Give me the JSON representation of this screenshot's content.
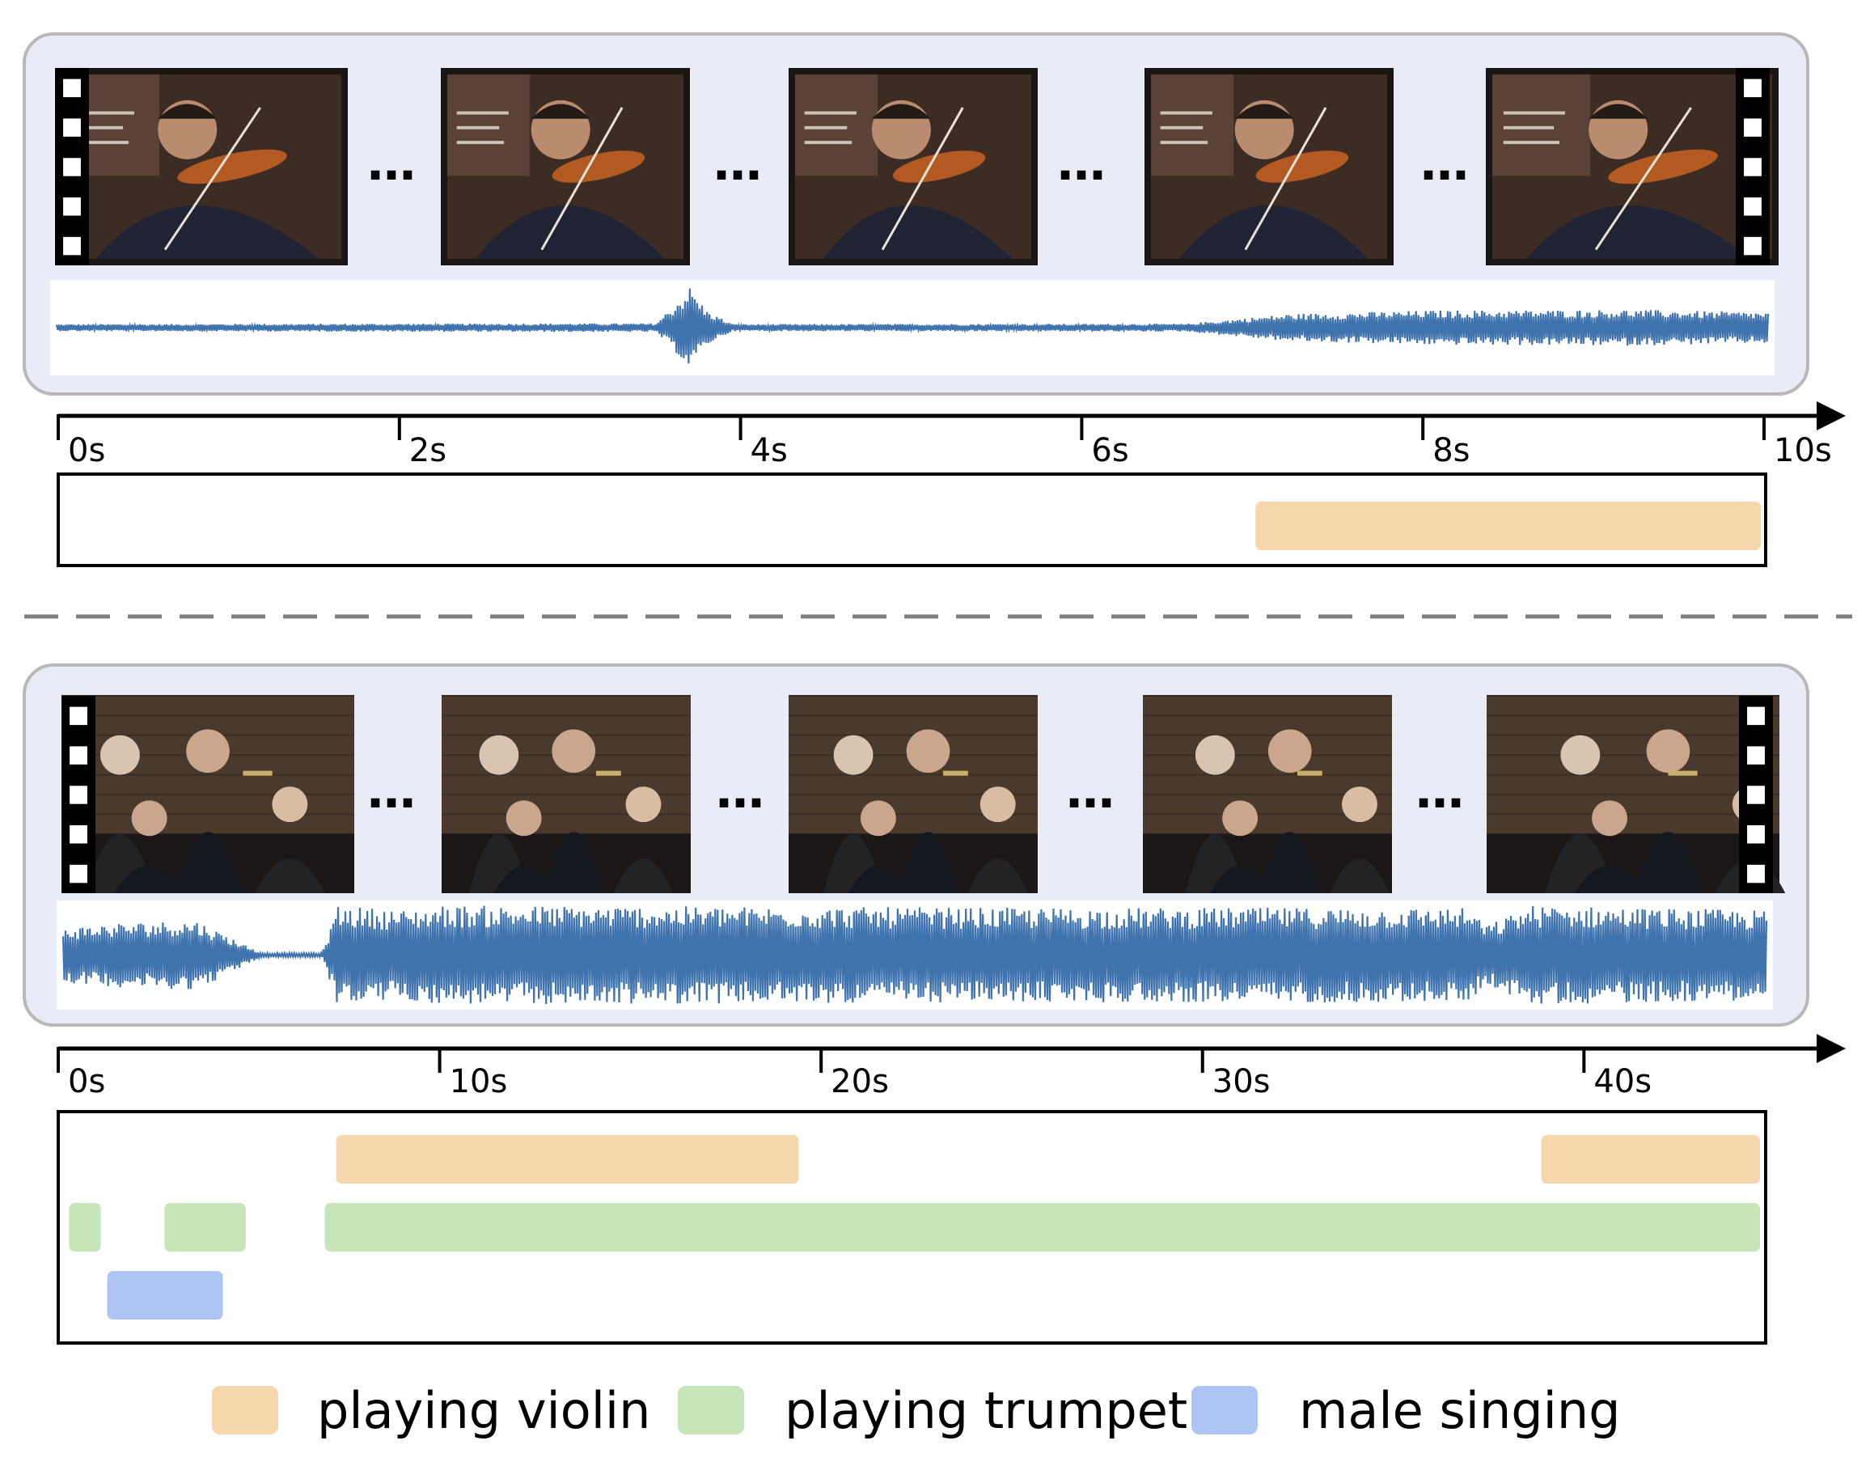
{
  "colors": {
    "panel_fill": "#e9ecf6",
    "panel_stroke": "#b8b8b8",
    "waveform": "#3f73ad",
    "violin": "#f5d6ad",
    "trumpet": "#c6e5b8",
    "singing": "#aec4f2",
    "axis": "#000000",
    "divider": "#808080"
  },
  "legend": [
    {
      "key": "violin",
      "label": "playing violin",
      "color": "#f5d6ad"
    },
    {
      "key": "trumpet",
      "label": "playing trumpet",
      "color": "#c6e5b8"
    },
    {
      "key": "singing",
      "label": "male singing",
      "color": "#aec4f2"
    }
  ],
  "examples": [
    {
      "scene": "violinist",
      "frame_count": 5,
      "ellipsis": "…",
      "timeline": {
        "unit": "s",
        "max": 10,
        "ticks": [
          0,
          2,
          4,
          6,
          8,
          10
        ],
        "tick_labels": [
          "0s",
          "2s",
          "4s",
          "6s",
          "8s",
          "10s"
        ]
      },
      "waveform_envelope": [
        {
          "t": 0,
          "a": 0.08
        },
        {
          "t": 3.5,
          "a": 0.1
        },
        {
          "t": 3.6,
          "a": 0.5
        },
        {
          "t": 3.7,
          "a": 0.95
        },
        {
          "t": 3.8,
          "a": 0.4
        },
        {
          "t": 3.95,
          "a": 0.08
        },
        {
          "t": 6.6,
          "a": 0.09
        },
        {
          "t": 7.2,
          "a": 0.32
        },
        {
          "t": 8.0,
          "a": 0.4
        },
        {
          "t": 9.2,
          "a": 0.42
        },
        {
          "t": 10,
          "a": 0.36
        }
      ],
      "events": [
        {
          "label": "playing violin",
          "key": "violin",
          "row": 0,
          "start": 7.0,
          "end": 10.0
        }
      ]
    },
    {
      "scene": "orchestra",
      "frame_count": 5,
      "ellipsis": "…",
      "timeline": {
        "unit": "s",
        "max": 44.7,
        "ticks": [
          0,
          10,
          20,
          30,
          40
        ],
        "tick_labels": [
          "0s",
          "10s",
          "20s",
          "30s",
          "40s"
        ]
      },
      "waveform_envelope": [
        {
          "t": 0,
          "a": 0.55
        },
        {
          "t": 1.5,
          "a": 0.65
        },
        {
          "t": 3.5,
          "a": 0.7
        },
        {
          "t": 4.8,
          "a": 0.2
        },
        {
          "t": 5.2,
          "a": 0.04
        },
        {
          "t": 6.8,
          "a": 0.04
        },
        {
          "t": 7.2,
          "a": 1.0
        },
        {
          "t": 9.0,
          "a": 0.9
        },
        {
          "t": 10.0,
          "a": 1.0
        },
        {
          "t": 25.0,
          "a": 0.95
        },
        {
          "t": 36.8,
          "a": 0.95
        },
        {
          "t": 37.4,
          "a": 0.6
        },
        {
          "t": 38.5,
          "a": 1.0
        },
        {
          "t": 44.7,
          "a": 0.9
        }
      ],
      "events": [
        {
          "label": "playing violin",
          "key": "violin",
          "row": 0,
          "start": 7.2,
          "end": 19.5
        },
        {
          "label": "playing violin",
          "key": "violin",
          "row": 0,
          "start": 38.8,
          "end": 44.7
        },
        {
          "label": "playing trumpet",
          "key": "trumpet",
          "row": 1,
          "start": 0.2,
          "end": 1.2
        },
        {
          "label": "playing trumpet",
          "key": "trumpet",
          "row": 1,
          "start": 2.7,
          "end": 5.0
        },
        {
          "label": "playing trumpet",
          "key": "trumpet",
          "row": 1,
          "start": 6.9,
          "end": 44.7
        },
        {
          "label": "male singing",
          "key": "singing",
          "row": 2,
          "start": 1.2,
          "end": 4.4
        }
      ]
    }
  ]
}
